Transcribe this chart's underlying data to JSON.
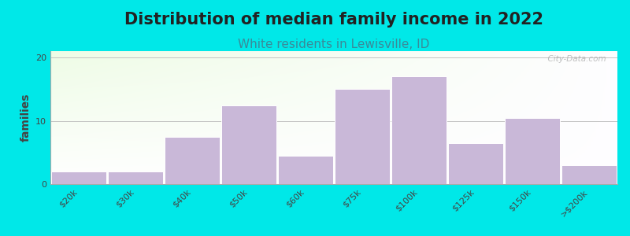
{
  "title": "Distribution of median family income in 2022",
  "subtitle": "White residents in Lewisville, ID",
  "ylabel": "families",
  "categories": [
    "$20k",
    "$30k",
    "$40k",
    "$50k",
    "$60k",
    "$75k",
    "$100k",
    "$125k",
    "$150k",
    ">$200k"
  ],
  "values": [
    2,
    2,
    7.5,
    12.5,
    4.5,
    15,
    17,
    6.5,
    10.5,
    3
  ],
  "bar_color": "#c9b8d8",
  "bar_edge_color": "#ffffff",
  "background_outer": "#00e8e8",
  "title_fontsize": 15,
  "title_color": "#222222",
  "subtitle_fontsize": 11,
  "subtitle_color": "#3a8a99",
  "ylabel_fontsize": 10,
  "tick_fontsize": 8,
  "ylim": [
    0,
    21
  ],
  "yticks": [
    0,
    10,
    20
  ],
  "grid_color": "#bbbbbb",
  "watermark_text": "  City-Data.com"
}
